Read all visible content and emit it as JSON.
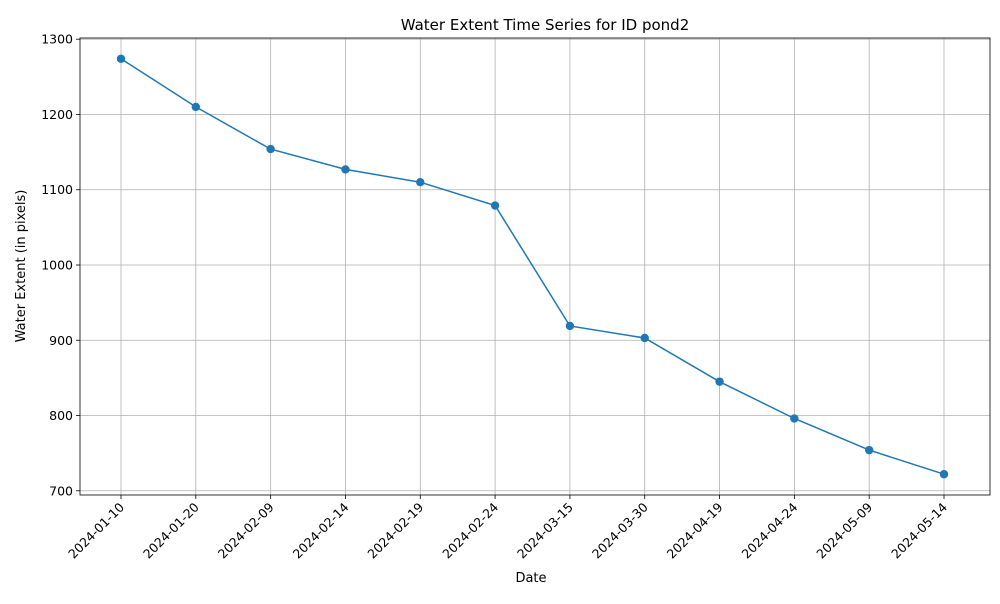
{
  "chart_data": {
    "type": "line",
    "title": "Water Extent Time Series for ID pond2",
    "xlabel": "Date",
    "ylabel": "Water Extent (in pixels)",
    "categories": [
      "2024-01-10",
      "2024-01-20",
      "2024-02-09",
      "2024-02-14",
      "2024-02-19",
      "2024-02-24",
      "2024-03-15",
      "2024-03-30",
      "2024-04-19",
      "2024-04-24",
      "2024-05-09",
      "2024-05-14"
    ],
    "series": [
      {
        "values": [
          1274,
          1210,
          1154,
          1127,
          1110,
          1079,
          919,
          903,
          845,
          796,
          754,
          722
        ],
        "color": "#1f77b4",
        "marker": "circle"
      }
    ],
    "yticks": [
      700,
      800,
      900,
      1000,
      1100,
      1200,
      1300
    ],
    "ylim": [
      694.4,
      1301.6
    ],
    "grid": true,
    "x_tick_rotation": 45
  }
}
